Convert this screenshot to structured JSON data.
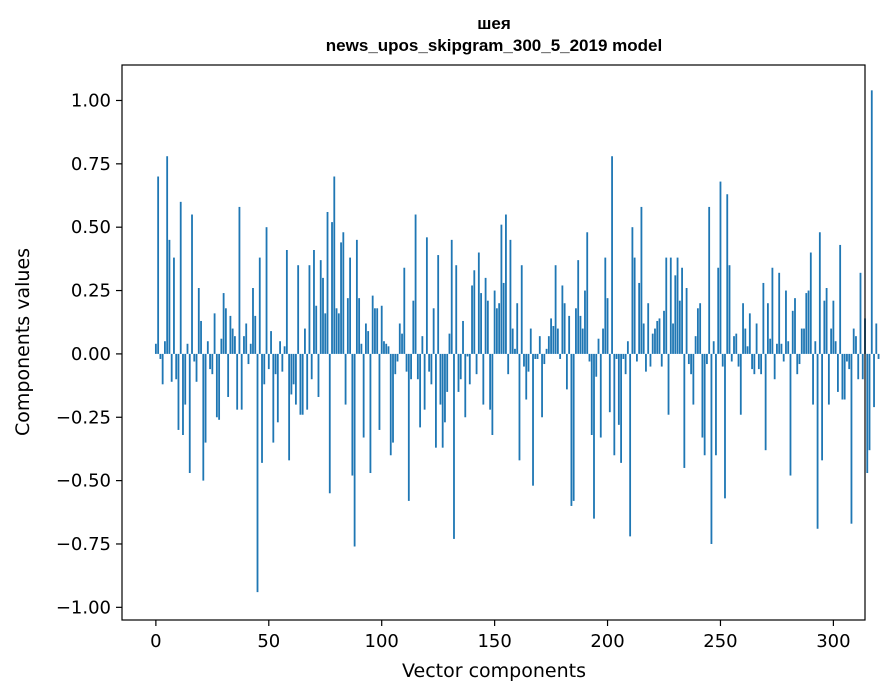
{
  "chart_data": {
    "type": "bar",
    "title": "шея",
    "subtitle": "news_upos_skipgram_300_5_2019 model",
    "xlabel": "Vector components",
    "ylabel": "Components values",
    "xlim": [
      -15,
      314
    ],
    "ylim": [
      -1.05,
      1.14
    ],
    "xticks": [
      0,
      50,
      100,
      150,
      200,
      250,
      300
    ],
    "yticks": [
      -1.0,
      -0.75,
      -0.5,
      -0.25,
      0.0,
      0.25,
      0.5,
      0.75,
      1.0
    ],
    "ytick_labels": [
      "−1.00",
      "−0.75",
      "−0.50",
      "−0.25",
      "0.00",
      "0.25",
      "0.50",
      "0.75",
      "1.00"
    ],
    "grid": false,
    "bar_color": "#1f77b4",
    "values": [
      0.04,
      0.7,
      -0.02,
      -0.12,
      0.05,
      0.78,
      0.45,
      -0.11,
      0.38,
      -0.1,
      -0.3,
      0.6,
      -0.32,
      -0.2,
      0.04,
      -0.47,
      0.55,
      -0.03,
      -0.11,
      0.26,
      0.13,
      -0.5,
      -0.35,
      0.05,
      -0.06,
      -0.08,
      0.16,
      -0.25,
      -0.26,
      0.06,
      0.24,
      0.18,
      -0.17,
      0.15,
      0.1,
      0.07,
      -0.22,
      0.58,
      -0.22,
      0.07,
      0.12,
      -0.04,
      0.04,
      0.26,
      0.15,
      -0.94,
      0.38,
      -0.43,
      -0.12,
      0.5,
      -0.06,
      0.09,
      -0.35,
      -0.08,
      -0.27,
      0.05,
      -0.07,
      0.03,
      0.41,
      -0.42,
      -0.16,
      -0.12,
      -0.2,
      0.35,
      -0.24,
      -0.24,
      0.1,
      -0.22,
      0.35,
      -0.1,
      0.41,
      0.19,
      -0.17,
      0.37,
      0.3,
      0.16,
      0.56,
      -0.55,
      0.52,
      0.7,
      0.18,
      0.16,
      0.44,
      0.48,
      -0.2,
      0.22,
      0.38,
      -0.48,
      -0.76,
      0.45,
      0.22,
      0.04,
      -0.33,
      0.12,
      0.09,
      -0.47,
      0.23,
      0.18,
      0.18,
      -0.3,
      0.19,
      0.05,
      0.04,
      0.03,
      -0.4,
      -0.35,
      -0.08,
      -0.03,
      0.12,
      0.08,
      0.34,
      -0.07,
      -0.58,
      -0.1,
      0.21,
      0.55,
      -0.1,
      -0.29,
      0.07,
      -0.22,
      0.46,
      -0.07,
      -0.12,
      0.18,
      -0.37,
      0.39,
      -0.2,
      -0.37,
      -0.27,
      -0.15,
      0.08,
      0.45,
      -0.73,
      0.35,
      -0.15,
      -0.1,
      0.13,
      -0.25,
      -0.01,
      -0.12,
      0.27,
      0.33,
      -0.08,
      0.4,
      0.24,
      -0.2,
      0.3,
      0.21,
      -0.22,
      -0.32,
      0.25,
      0.18,
      0.2,
      0.51,
      0.28,
      0.55,
      -0.08,
      0.45,
      0.1,
      0.02,
      0.2,
      -0.42,
      0.35,
      -0.05,
      -0.18,
      -0.07,
      0.1,
      -0.52,
      -0.02,
      -0.02,
      0.07,
      -0.25,
      -0.04,
      0.02,
      0.07,
      0.14,
      0.11,
      0.35,
      0.1,
      -0.02,
      0.27,
      0.2,
      -0.14,
      0.15,
      -0.6,
      -0.58,
      0.18,
      0.37,
      0.15,
      0.1,
      0.25,
      0.48,
      -0.03,
      -0.32,
      -0.65,
      -0.09,
      0.06,
      -0.33,
      0.1,
      0.38,
      0.22,
      -0.23,
      0.78,
      -0.4,
      -0.02,
      -0.28,
      -0.43,
      -0.02,
      -0.08,
      0.05,
      -0.72,
      0.5,
      0.38,
      -0.03,
      0.28,
      0.58,
      0.12,
      -0.07,
      0.2,
      -0.05,
      0.08,
      0.1,
      0.13,
      0.14,
      -0.05,
      0.17,
      0.38,
      -0.24,
      0.38,
      0.12,
      0.31,
      0.38,
      0.21,
      0.34,
      -0.45,
      0.26,
      -0.04,
      -0.08,
      -0.2,
      0.07,
      0.18,
      0.2,
      -0.33,
      -0.4,
      -0.04,
      0.58,
      -0.75,
      0.05,
      -0.4,
      0.34,
      0.68,
      -0.05,
      -0.57,
      0.63,
      0.35,
      -0.03,
      0.07,
      0.08,
      -0.05,
      -0.24,
      0.2,
      0.1,
      0.03,
      0.16,
      -0.06,
      -0.08,
      0.12,
      -0.06,
      -0.08,
      0.28,
      -0.38,
      0.2,
      0.06,
      0.34,
      -0.1,
      0.04,
      0.32,
      0.04,
      -0.03,
      0.25,
      0.05,
      -0.48,
      0.17,
      0.22,
      -0.08,
      -0.04,
      0.1,
      0.1,
      0.24,
      0.25,
      0.4,
      -0.2,
      0.05,
      -0.69,
      0.48,
      -0.42,
      0.21,
      0.26,
      -0.2,
      0.1,
      0.21,
      0.05,
      -0.15,
      0.43,
      -0.18,
      -0.18,
      -0.03,
      -0.06,
      -0.67,
      0.1,
      0.07,
      -0.1,
      0.32,
      -0.1,
      0.14,
      -0.47,
      -0.38,
      1.04,
      -0.21,
      0.12,
      -0.02
    ]
  }
}
